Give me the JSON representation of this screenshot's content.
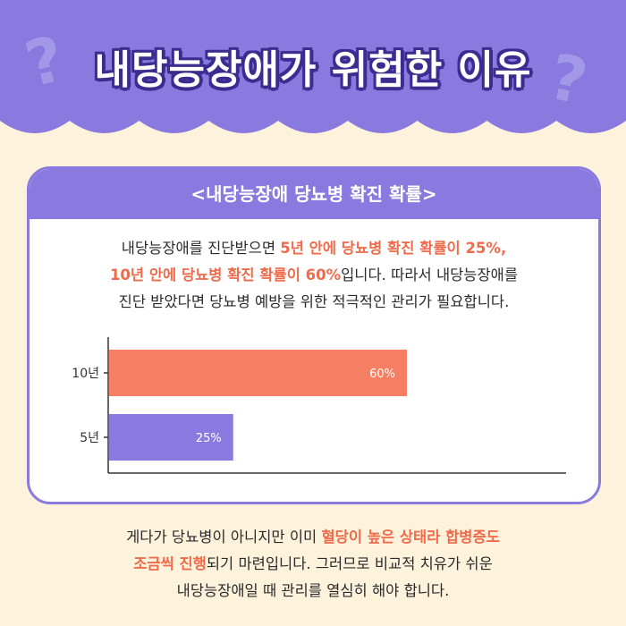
{
  "title": "내당능장애가 위험한 이유",
  "decor": {
    "q1": "?",
    "q2": "?"
  },
  "card": {
    "header": "<내당능장애 당뇨병 확진 확률>",
    "lines": [
      [
        {
          "t": "내당능장애를 진단받으면 ",
          "hl": false
        },
        {
          "t": "5년 안에 당뇨병 확진 확률이 25%,",
          "hl": true
        }
      ],
      [
        {
          "t": "10년 안에 당뇨병 확진 확률이 60%",
          "hl": true
        },
        {
          "t": "입니다. 따라서 내당능장애를",
          "hl": false
        }
      ],
      [
        {
          "t": "진단 받았다면 당뇨병 예방을 위한 적극적인 관리가 필요합니다.",
          "hl": false
        }
      ]
    ]
  },
  "chart_data": {
    "type": "bar",
    "orientation": "horizontal",
    "categories": [
      "10년",
      "5년"
    ],
    "values": [
      60,
      25
    ],
    "value_labels": [
      "60%",
      "25%"
    ],
    "colors": [
      "#f47f62",
      "#8a7ae0"
    ],
    "xlim": [
      0,
      100
    ]
  },
  "footer": {
    "lines": [
      [
        {
          "t": "게다가 당뇨병이 아니지만 이미 ",
          "hl": false
        },
        {
          "t": "혈당이 높은 상태라 합병증도",
          "hl": true
        }
      ],
      [
        {
          "t": "조금씩 진행",
          "hl": true
        },
        {
          "t": "되기 마련입니다. 그러므로 비교적 치유가 쉬운",
          "hl": false
        }
      ],
      [
        {
          "t": "내당능장애일 때 관리를 열심히 해야 합니다.",
          "hl": false
        }
      ]
    ]
  }
}
